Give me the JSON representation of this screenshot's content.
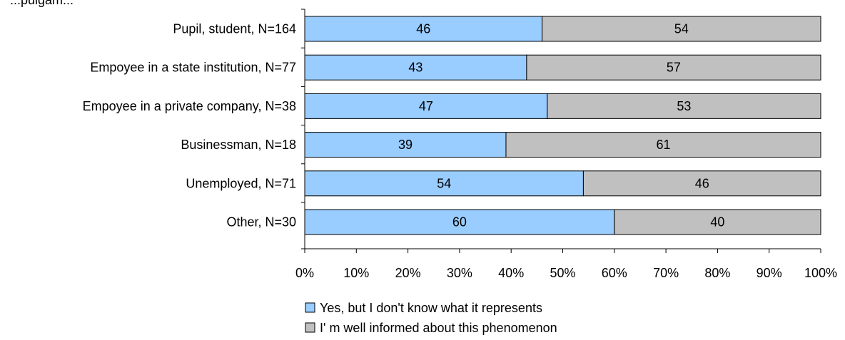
{
  "chart_data": {
    "type": "bar",
    "orientation": "horizontal",
    "stacked": "percent",
    "title_fragment": "...pulgam...",
    "categories": [
      "Pupil, student, N=164",
      "Empoyee in a state institution, N=77",
      "Empoyee in a private company, N=38",
      "Businessman, N=18",
      "Unemployed, N=71",
      "Other, N=30"
    ],
    "series": [
      {
        "name": "Yes, but I don't know what it represents",
        "color": "#99ccff",
        "values": [
          46,
          43,
          47,
          39,
          54,
          60
        ]
      },
      {
        "name": "I' m well informed about this phenomenon",
        "color": "#c0c0c0",
        "values": [
          54,
          57,
          53,
          61,
          46,
          40
        ]
      }
    ],
    "xlim": [
      0,
      100
    ],
    "xticks": [
      "0%",
      "10%",
      "20%",
      "30%",
      "40%",
      "50%",
      "60%",
      "70%",
      "80%",
      "90%",
      "100%"
    ],
    "grid": false,
    "legend_position": "bottom"
  }
}
